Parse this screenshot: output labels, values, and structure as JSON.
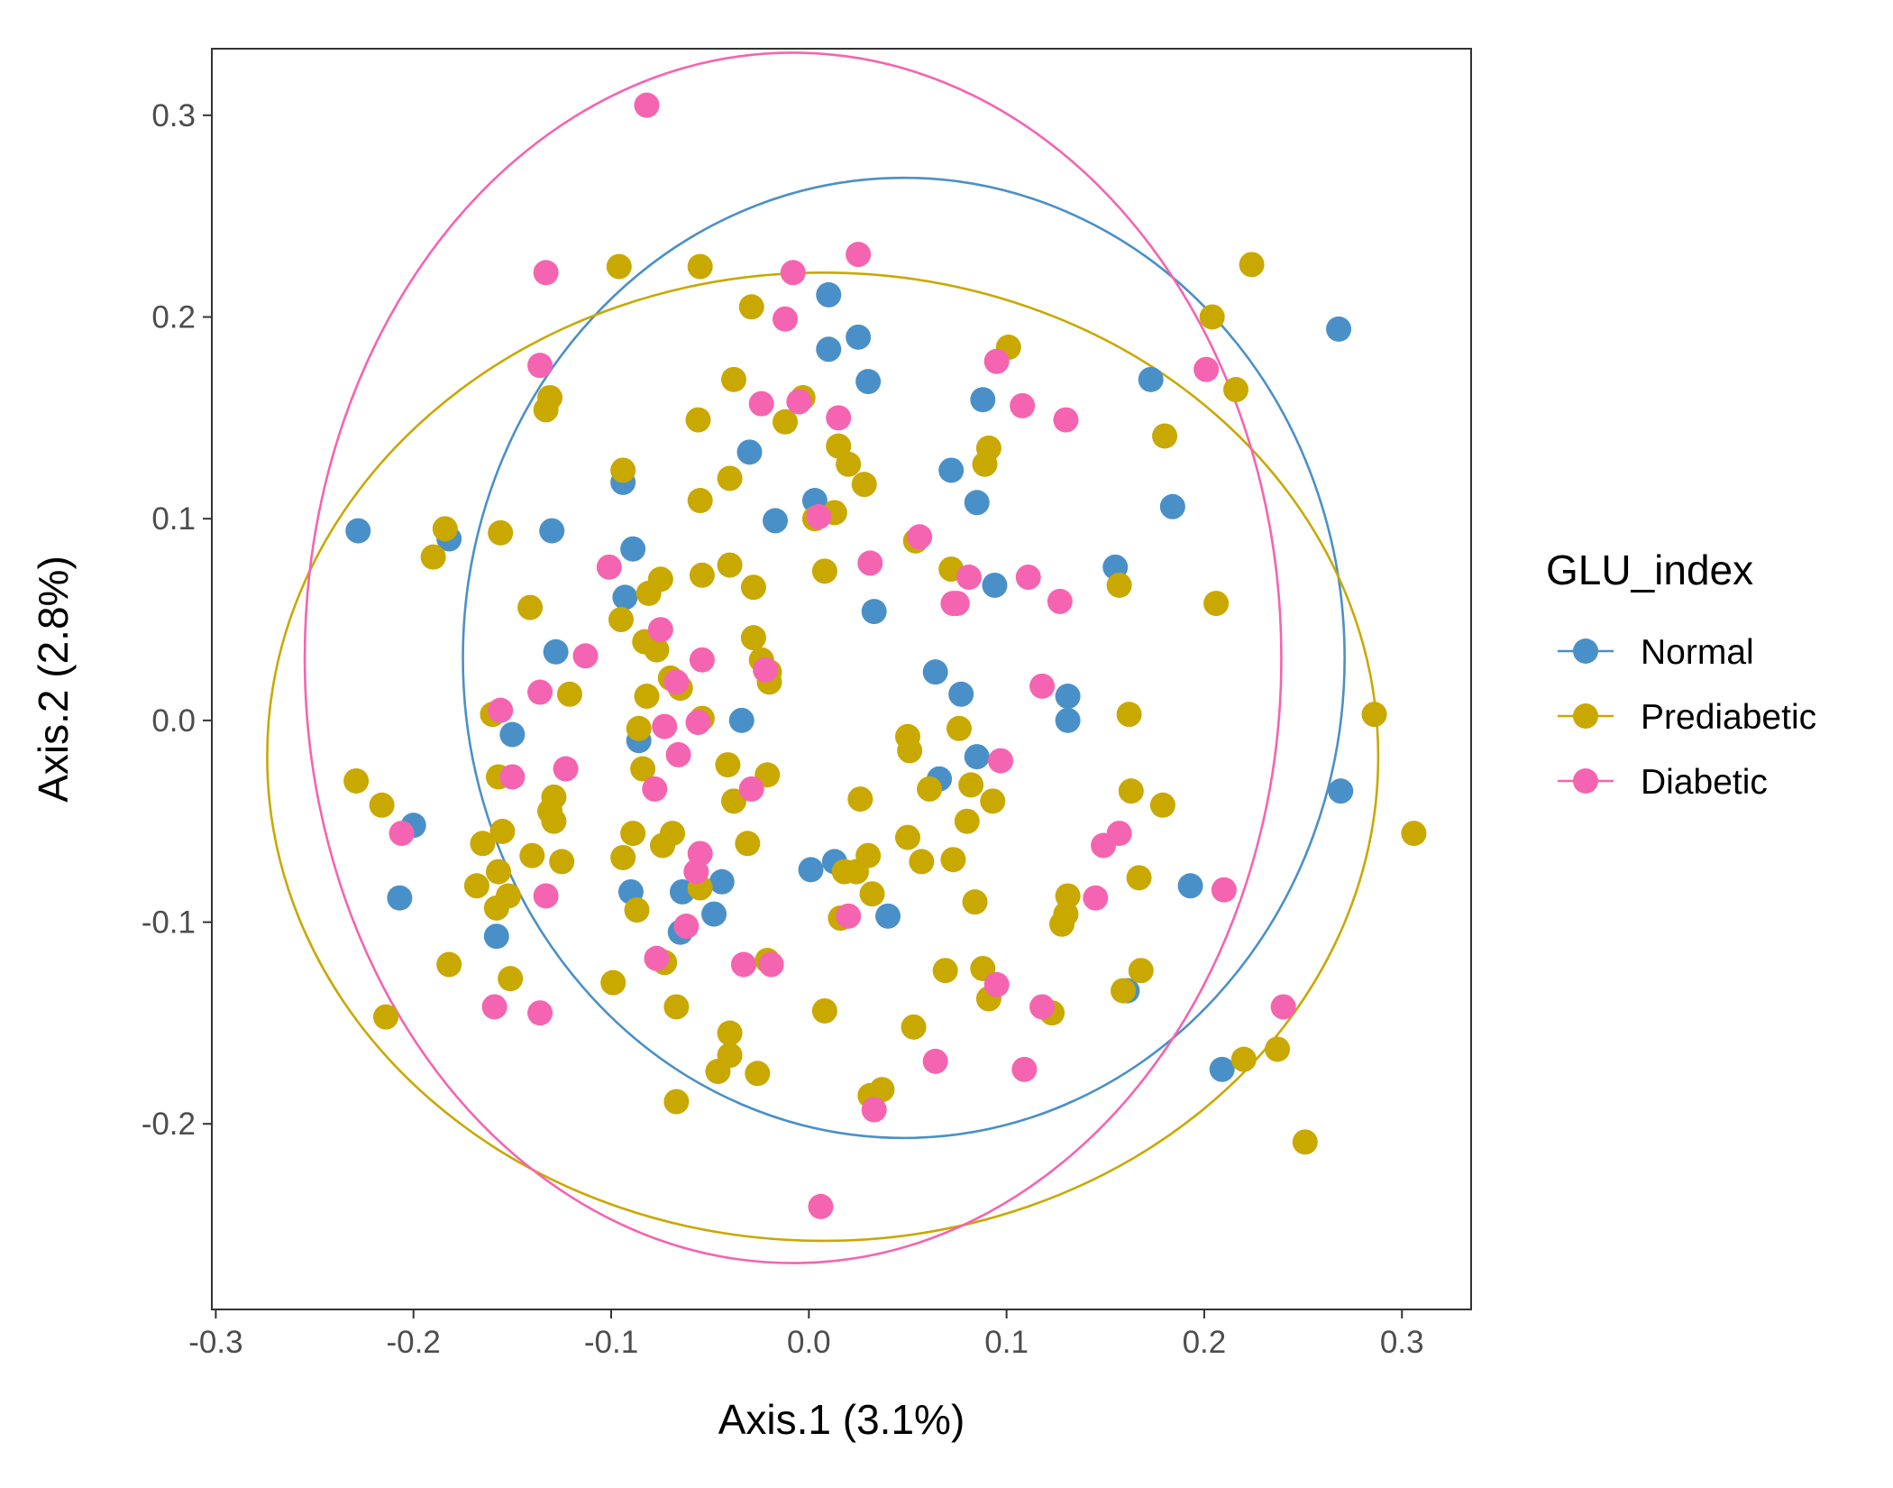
{
  "chart_data": {
    "type": "scatter",
    "xlabel": "Axis.1 (3.1%)",
    "ylabel": "Axis.2 (2.8%)",
    "xlim": [
      -0.302,
      0.335
    ],
    "ylim": [
      -0.292,
      0.333
    ],
    "xticks": [
      -0.3,
      -0.2,
      -0.1,
      0.0,
      0.1,
      0.2,
      0.3
    ],
    "xtick_labels": [
      "-0.3",
      "-0.2",
      "-0.1",
      "0.0",
      "0.1",
      "0.2",
      "0.3"
    ],
    "yticks": [
      -0.2,
      -0.1,
      0.0,
      0.1,
      0.2,
      0.3
    ],
    "ytick_labels": [
      "-0.2",
      "-0.1",
      "0.0",
      "0.1",
      "0.2",
      "0.3"
    ],
    "grid": false,
    "legend": {
      "title": "GLU_index",
      "position": "right"
    },
    "series": [
      {
        "name": "Normal",
        "color": "#4a90c8",
        "ellipse": {
          "center": [
            0.048,
            0.031
          ],
          "radii": [
            0.223,
            0.238
          ]
        },
        "points": [
          [
            -0.228,
            0.094
          ],
          [
            -0.182,
            0.09
          ],
          [
            -0.13,
            0.094
          ],
          [
            -0.094,
            0.118
          ],
          [
            -0.093,
            0.061
          ],
          [
            -0.089,
            0.085
          ],
          [
            -0.128,
            0.034
          ],
          [
            -0.15,
            -0.007
          ],
          [
            -0.2,
            -0.052
          ],
          [
            -0.207,
            -0.088
          ],
          [
            -0.158,
            -0.107
          ],
          [
            -0.09,
            -0.085
          ],
          [
            -0.086,
            -0.01
          ],
          [
            -0.065,
            -0.105
          ],
          [
            -0.064,
            -0.085
          ],
          [
            -0.048,
            -0.096
          ],
          [
            -0.044,
            -0.08
          ],
          [
            -0.034,
            0.0
          ],
          [
            -0.03,
            0.133
          ],
          [
            -0.017,
            0.099
          ],
          [
            0.003,
            0.109
          ],
          [
            0.01,
            0.211
          ],
          [
            0.01,
            0.184
          ],
          [
            0.025,
            0.19
          ],
          [
            0.03,
            0.168
          ],
          [
            0.033,
            0.054
          ],
          [
            0.064,
            0.024
          ],
          [
            0.066,
            -0.029
          ],
          [
            0.072,
            0.124
          ],
          [
            0.077,
            0.013
          ],
          [
            0.085,
            0.108
          ],
          [
            0.085,
            -0.018
          ],
          [
            0.088,
            0.159
          ],
          [
            0.094,
            0.067
          ],
          [
            0.013,
            -0.07
          ],
          [
            0.001,
            -0.074
          ],
          [
            0.04,
            -0.097
          ],
          [
            0.131,
            0.012
          ],
          [
            0.131,
            0.0
          ],
          [
            0.155,
            0.076
          ],
          [
            0.161,
            -0.134
          ],
          [
            0.173,
            0.169
          ],
          [
            0.184,
            0.106
          ],
          [
            0.193,
            -0.082
          ],
          [
            0.209,
            -0.173
          ],
          [
            0.268,
            0.194
          ],
          [
            0.269,
            -0.035
          ]
        ]
      },
      {
        "name": "Prediabetic",
        "color": "#c9a800",
        "ellipse": {
          "center": [
            0.007,
            -0.018
          ],
          "radii": [
            0.281,
            0.24
          ]
        },
        "points": [
          [
            -0.229,
            -0.03
          ],
          [
            -0.216,
            -0.042
          ],
          [
            -0.214,
            -0.147
          ],
          [
            -0.19,
            0.081
          ],
          [
            -0.184,
            0.095
          ],
          [
            -0.182,
            -0.121
          ],
          [
            -0.168,
            -0.082
          ],
          [
            -0.165,
            -0.061
          ],
          [
            -0.16,
            0.003
          ],
          [
            -0.158,
            -0.093
          ],
          [
            -0.157,
            -0.028
          ],
          [
            -0.157,
            -0.075
          ],
          [
            -0.156,
            0.093
          ],
          [
            -0.155,
            -0.055
          ],
          [
            -0.152,
            -0.087
          ],
          [
            -0.151,
            -0.128
          ],
          [
            -0.141,
            0.056
          ],
          [
            -0.14,
            -0.067
          ],
          [
            -0.133,
            0.154
          ],
          [
            -0.131,
            0.16
          ],
          [
            -0.131,
            -0.045
          ],
          [
            -0.129,
            -0.038
          ],
          [
            -0.129,
            -0.05
          ],
          [
            -0.125,
            -0.07
          ],
          [
            -0.121,
            0.013
          ],
          [
            -0.099,
            -0.13
          ],
          [
            -0.095,
            0.05
          ],
          [
            -0.094,
            0.124
          ],
          [
            -0.094,
            -0.068
          ],
          [
            -0.089,
            -0.056
          ],
          [
            -0.087,
            -0.094
          ],
          [
            -0.086,
            -0.004
          ],
          [
            -0.084,
            -0.024
          ],
          [
            -0.083,
            0.039
          ],
          [
            -0.082,
            0.012
          ],
          [
            -0.081,
            0.063
          ],
          [
            -0.077,
            0.035
          ],
          [
            -0.075,
            0.07
          ],
          [
            -0.074,
            -0.062
          ],
          [
            -0.073,
            -0.12
          ],
          [
            -0.07,
            0.021
          ],
          [
            -0.069,
            -0.056
          ],
          [
            -0.067,
            -0.142
          ],
          [
            -0.067,
            -0.189
          ],
          [
            -0.065,
            0.016
          ],
          [
            -0.056,
            0.149
          ],
          [
            -0.055,
            0.109
          ],
          [
            -0.054,
            0.072
          ],
          [
            -0.054,
            0.001
          ],
          [
            -0.055,
            0.225
          ],
          [
            -0.055,
            -0.083
          ],
          [
            -0.046,
            -0.174
          ],
          [
            -0.041,
            -0.022
          ],
          [
            -0.04,
            0.12
          ],
          [
            -0.04,
            0.077
          ],
          [
            -0.04,
            -0.155
          ],
          [
            -0.04,
            -0.166
          ],
          [
            -0.038,
            -0.04
          ],
          [
            -0.038,
            0.169
          ],
          [
            -0.031,
            -0.061
          ],
          [
            -0.029,
            0.205
          ],
          [
            -0.028,
            0.066
          ],
          [
            -0.028,
            0.041
          ],
          [
            -0.026,
            -0.175
          ],
          [
            -0.024,
            0.03
          ],
          [
            -0.021,
            -0.027
          ],
          [
            -0.021,
            -0.119
          ],
          [
            -0.02,
            0.024
          ],
          [
            -0.02,
            0.019
          ],
          [
            -0.012,
            0.148
          ],
          [
            -0.003,
            0.16
          ],
          [
            0.003,
            0.1
          ],
          [
            0.008,
            0.074
          ],
          [
            0.008,
            -0.144
          ],
          [
            0.013,
            0.103
          ],
          [
            0.015,
            0.136
          ],
          [
            0.016,
            -0.098
          ],
          [
            0.018,
            -0.075
          ],
          [
            0.02,
            0.127
          ],
          [
            0.024,
            -0.075
          ],
          [
            0.026,
            -0.039
          ],
          [
            0.028,
            0.117
          ],
          [
            0.03,
            -0.067
          ],
          [
            0.031,
            -0.186
          ],
          [
            0.032,
            -0.086
          ],
          [
            0.037,
            -0.183
          ],
          [
            0.05,
            -0.058
          ],
          [
            0.05,
            -0.008
          ],
          [
            0.051,
            -0.015
          ],
          [
            0.053,
            -0.152
          ],
          [
            0.054,
            0.089
          ],
          [
            0.057,
            -0.07
          ],
          [
            0.061,
            -0.034
          ],
          [
            0.069,
            -0.124
          ],
          [
            0.072,
            0.075
          ],
          [
            0.073,
            -0.069
          ],
          [
            0.076,
            -0.004
          ],
          [
            0.08,
            -0.05
          ],
          [
            0.082,
            -0.032
          ],
          [
            0.084,
            -0.09
          ],
          [
            0.088,
            -0.123
          ],
          [
            0.089,
            0.127
          ],
          [
            0.091,
            -0.138
          ],
          [
            0.091,
            0.135
          ],
          [
            0.093,
            -0.04
          ],
          [
            0.101,
            0.185
          ],
          [
            0.123,
            -0.145
          ],
          [
            0.128,
            -0.101
          ],
          [
            0.13,
            -0.096
          ],
          [
            0.131,
            -0.087
          ],
          [
            0.157,
            0.067
          ],
          [
            0.159,
            -0.134
          ],
          [
            0.162,
            0.003
          ],
          [
            0.163,
            -0.035
          ],
          [
            0.167,
            -0.078
          ],
          [
            0.168,
            -0.124
          ],
          [
            0.179,
            -0.042
          ],
          [
            0.18,
            0.141
          ],
          [
            0.204,
            0.2
          ],
          [
            0.206,
            0.058
          ],
          [
            0.216,
            0.164
          ],
          [
            0.22,
            -0.168
          ],
          [
            0.224,
            0.226
          ],
          [
            0.237,
            -0.163
          ],
          [
            0.251,
            -0.209
          ],
          [
            0.286,
            0.003
          ],
          [
            0.306,
            -0.056
          ],
          [
            -0.096,
            0.225
          ]
        ]
      },
      {
        "name": "Diabetic",
        "color": "#f564b0",
        "ellipse": {
          "center": [
            -0.008,
            0.031
          ],
          "radii": [
            0.247,
            0.3
          ]
        },
        "points": [
          [
            -0.082,
            0.305
          ],
          [
            -0.133,
            0.222
          ],
          [
            -0.136,
            0.176
          ],
          [
            -0.113,
            0.032
          ],
          [
            -0.136,
            0.014
          ],
          [
            -0.156,
            0.005
          ],
          [
            -0.15,
            -0.028
          ],
          [
            -0.123,
            -0.024
          ],
          [
            -0.206,
            -0.056
          ],
          [
            -0.133,
            -0.087
          ],
          [
            -0.159,
            -0.142
          ],
          [
            -0.136,
            -0.145
          ],
          [
            -0.101,
            0.076
          ],
          [
            -0.075,
            0.045
          ],
          [
            -0.067,
            0.019
          ],
          [
            -0.073,
            -0.003
          ],
          [
            -0.054,
            0.03
          ],
          [
            -0.056,
            -0.001
          ],
          [
            -0.066,
            -0.017
          ],
          [
            -0.078,
            -0.034
          ],
          [
            -0.055,
            -0.066
          ],
          [
            -0.057,
            -0.075
          ],
          [
            -0.062,
            -0.102
          ],
          [
            -0.077,
            -0.118
          ],
          [
            -0.033,
            -0.121
          ],
          [
            -0.019,
            -0.121
          ],
          [
            -0.029,
            -0.034
          ],
          [
            -0.022,
            0.025
          ],
          [
            -0.012,
            0.199
          ],
          [
            -0.008,
            0.222
          ],
          [
            -0.005,
            0.158
          ],
          [
            -0.024,
            0.157
          ],
          [
            0.015,
            0.15
          ],
          [
            0.005,
            0.101
          ],
          [
            0.031,
            0.078
          ],
          [
            0.056,
            0.091
          ],
          [
            0.081,
            0.071
          ],
          [
            0.073,
            0.058
          ],
          [
            0.075,
            0.058
          ],
          [
            0.095,
            0.178
          ],
          [
            0.108,
            0.156
          ],
          [
            0.111,
            0.071
          ],
          [
            0.118,
            0.017
          ],
          [
            0.127,
            0.059
          ],
          [
            0.13,
            0.149
          ],
          [
            0.097,
            -0.02
          ],
          [
            0.145,
            -0.088
          ],
          [
            0.149,
            -0.062
          ],
          [
            0.157,
            -0.056
          ],
          [
            0.109,
            -0.173
          ],
          [
            0.095,
            -0.131
          ],
          [
            0.118,
            -0.142
          ],
          [
            0.02,
            -0.097
          ],
          [
            0.064,
            -0.169
          ],
          [
            0.033,
            -0.193
          ],
          [
            0.006,
            -0.241
          ],
          [
            0.025,
            0.231
          ],
          [
            0.21,
            -0.084
          ],
          [
            0.201,
            0.174
          ],
          [
            0.24,
            -0.142
          ]
        ]
      }
    ]
  }
}
